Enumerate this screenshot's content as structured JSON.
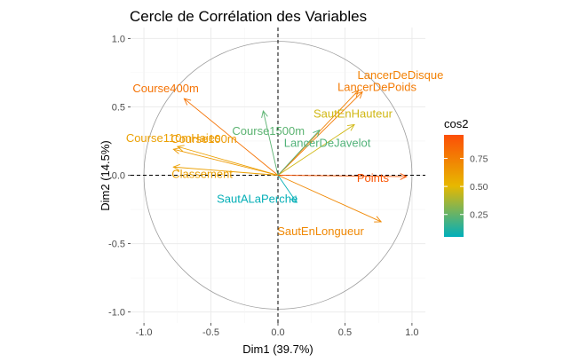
{
  "chart_data": {
    "type": "scatter",
    "subtype": "correlation-circle",
    "title": "Cercle de Corrélation des Variables",
    "xlabel": "Dim1 (39.7%)",
    "ylabel": "Dim2 (14.5%)",
    "xlim": [
      -1.1,
      1.1
    ],
    "ylim": [
      -1.08,
      1.08
    ],
    "x_ticks": [
      -1.0,
      -0.5,
      0.0,
      0.5,
      1.0
    ],
    "y_ticks": [
      -1.0,
      -0.5,
      0.0,
      0.5,
      1.0
    ],
    "x_tick_labels": [
      "-1.0",
      "-0.5",
      "0.0",
      "0.5",
      "1.0"
    ],
    "y_tick_labels": [
      "-1.0",
      "-0.5",
      "0.0",
      "0.5",
      "1.0"
    ],
    "grid": true,
    "unit_circle": true,
    "reference_lines": "dashed lines at x=0 and y=0",
    "legend_title": "cos2",
    "legend_position": "right",
    "legend_ticks": [
      0.25,
      0.5,
      0.75
    ],
    "legend_tick_labels": [
      "0.25",
      "0.50",
      "0.75"
    ],
    "color_scale": {
      "domain": [
        0.05,
        0.96
      ],
      "colors": [
        "#00AFBB",
        "#E7B800",
        "#FC4E07"
      ]
    },
    "variables": [
      {
        "name": "Course400m",
        "x": -0.7,
        "y": 0.56,
        "cos2": 0.8
      },
      {
        "name": "Course110mHaies",
        "x": -0.75,
        "y": 0.21,
        "cos2": 0.61
      },
      {
        "name": "Course100m",
        "x": -0.78,
        "y": 0.19,
        "cos2": 0.64
      },
      {
        "name": "Classement",
        "x": -0.78,
        "y": 0.06,
        "cos2": 0.61
      },
      {
        "name": "Course1500m",
        "x": -0.11,
        "y": 0.47,
        "cos2": 0.23
      },
      {
        "name": "LancerDeDisque",
        "x": 0.6,
        "y": 0.62,
        "cos2": 0.74
      },
      {
        "name": "LancerDePoids",
        "x": 0.63,
        "y": 0.61,
        "cos2": 0.77
      },
      {
        "name": "SautEnHauteur",
        "x": 0.57,
        "y": 0.37,
        "cos2": 0.46
      },
      {
        "name": "LancerDeJavelot",
        "x": 0.31,
        "y": 0.33,
        "cos2": 0.21
      },
      {
        "name": "SautALaPerche",
        "x": 0.14,
        "y": -0.2,
        "cos2": 0.06
      },
      {
        "name": "SautEnLongueur",
        "x": 0.77,
        "y": -0.34,
        "cos2": 0.71
      },
      {
        "name": "Points",
        "x": 0.96,
        "y": -0.01,
        "cos2": 0.92
      }
    ]
  }
}
